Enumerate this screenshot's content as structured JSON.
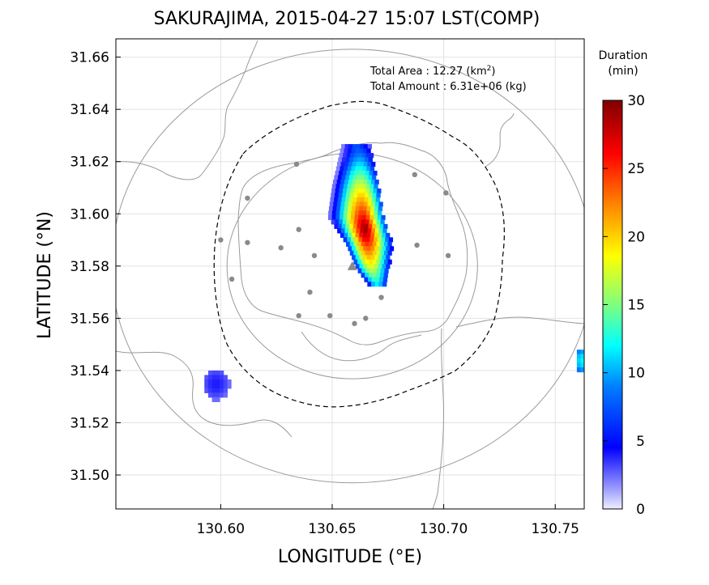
{
  "chart_data": {
    "type": "heatmap",
    "title": "SAKURAJIMA, 2015-04-27 15:07 LST(COMP)",
    "xlabel": "LONGITUDE (°E)",
    "ylabel": "LATITUDE (°N)",
    "xlim": [
      130.553,
      130.763
    ],
    "ylim": [
      31.487,
      31.667
    ],
    "xticks": [
      130.6,
      130.65,
      130.7,
      130.75
    ],
    "xtick_labels": [
      "130.60",
      "130.65",
      "130.70",
      "130.75"
    ],
    "yticks": [
      31.5,
      31.52,
      31.54,
      31.56,
      31.58,
      31.6,
      31.62,
      31.64,
      31.66
    ],
    "ytick_labels": [
      "31.50",
      "31.52",
      "31.54",
      "31.56",
      "31.58",
      "31.60",
      "31.62",
      "31.64",
      "31.66"
    ],
    "grid": true,
    "annotations": {
      "area_label": "Total Area   : 12.27 (km",
      "area_sup": "2",
      "area_close": ")",
      "amount_label": "Total Amount : 6.31e+06 (kg)"
    },
    "colorbar": {
      "title_line1": "Duration",
      "title_line2": "(min)",
      "min": 0,
      "max": 30,
      "ticks": [
        0,
        5,
        10,
        15,
        20,
        25,
        30
      ],
      "tick_labels": [
        "0",
        "5",
        "10",
        "15",
        "20",
        "25",
        "30"
      ]
    },
    "vent": {
      "lon": 130.659,
      "lat": 31.58
    },
    "range_rings": [
      {
        "center_lon": 130.659,
        "center_lat": 31.58,
        "radius_deg": 0.052,
        "style": "solid"
      },
      {
        "center_lon": 130.659,
        "center_lat": 31.58,
        "radius_deg": 0.1,
        "style": "solid"
      }
    ],
    "stations": [
      [
        130.634,
        31.619
      ],
      [
        130.612,
        31.606
      ],
      [
        130.6,
        31.59
      ],
      [
        130.612,
        31.589
      ],
      [
        130.627,
        31.587
      ],
      [
        130.635,
        31.594
      ],
      [
        130.642,
        31.584
      ],
      [
        130.605,
        31.575
      ],
      [
        130.64,
        31.57
      ],
      [
        130.635,
        31.561
      ],
      [
        130.649,
        31.561
      ],
      [
        130.66,
        31.558
      ],
      [
        130.665,
        31.56
      ],
      [
        130.672,
        31.568
      ],
      [
        130.687,
        31.615
      ],
      [
        130.701,
        31.608
      ],
      [
        130.688,
        31.588
      ],
      [
        130.702,
        31.584
      ]
    ],
    "deposit": {
      "centerline": [
        {
          "lat": 31.625,
          "lon": 130.66,
          "half_width": 0.006
        },
        {
          "lat": 31.61,
          "lon": 130.66,
          "half_width": 0.01
        },
        {
          "lat": 31.598,
          "lon": 130.66,
          "half_width": 0.012
        },
        {
          "lat": 31.588,
          "lon": 130.666,
          "half_width": 0.01
        },
        {
          "lat": 31.578,
          "lon": 130.668,
          "half_width": 0.007
        },
        {
          "lat": 31.572,
          "lon": 130.67,
          "half_width": 0.004
        }
      ],
      "core_center": {
        "lon": 130.664,
        "lat": 31.594
      },
      "peak_minutes": 30,
      "secondary_patches": [
        {
          "lon": 130.597,
          "lat": 31.534,
          "minutes": 4,
          "rx": 0.006,
          "ry": 0.006
        },
        {
          "lon": 130.761,
          "lat": 31.543,
          "minutes": 12,
          "rx": 0.003,
          "ry": 0.005
        }
      ]
    }
  }
}
